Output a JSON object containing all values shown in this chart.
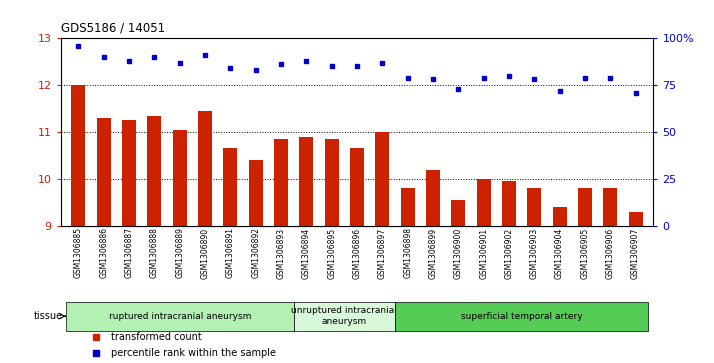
{
  "title": "GDS5186 / 14051",
  "samples": [
    "GSM1306885",
    "GSM1306886",
    "GSM1306887",
    "GSM1306888",
    "GSM1306889",
    "GSM1306890",
    "GSM1306891",
    "GSM1306892",
    "GSM1306893",
    "GSM1306894",
    "GSM1306895",
    "GSM1306896",
    "GSM1306897",
    "GSM1306898",
    "GSM1306899",
    "GSM1306900",
    "GSM1306901",
    "GSM1306902",
    "GSM1306903",
    "GSM1306904",
    "GSM1306905",
    "GSM1306906",
    "GSM1306907"
  ],
  "bar_values": [
    12.0,
    11.3,
    11.25,
    11.35,
    11.05,
    11.45,
    10.65,
    10.4,
    10.85,
    10.9,
    10.85,
    10.65,
    11.0,
    9.8,
    10.2,
    9.55,
    10.0,
    9.95,
    9.8,
    9.4,
    9.8,
    9.8,
    9.3
  ],
  "dot_values": [
    96,
    90,
    88,
    90,
    87,
    91,
    84,
    83,
    86,
    88,
    85,
    85,
    87,
    79,
    78,
    73,
    79,
    80,
    78,
    72,
    79,
    79,
    71
  ],
  "bar_color": "#cc2200",
  "dot_color": "#0000cc",
  "ylim_left": [
    9,
    13
  ],
  "ylim_right": [
    0,
    100
  ],
  "yticks_left": [
    9,
    10,
    11,
    12,
    13
  ],
  "yticks_right": [
    0,
    25,
    50,
    75,
    100
  ],
  "ytick_labels_right": [
    "0",
    "25",
    "50",
    "75",
    "100%"
  ],
  "grid_lines": [
    10,
    11,
    12
  ],
  "tissue_groups": [
    {
      "label": "ruptured intracranial aneurysm",
      "start": 0,
      "end": 9,
      "color": "#b3f0b3"
    },
    {
      "label": "unruptured intracranial\naneurysm",
      "start": 9,
      "end": 13,
      "color": "#d9f7d9"
    },
    {
      "label": "superficial temporal artery",
      "start": 13,
      "end": 23,
      "color": "#55cc55"
    }
  ],
  "legend_items": [
    {
      "label": "transformed count",
      "color": "#cc2200"
    },
    {
      "label": "percentile rank within the sample",
      "color": "#0000cc"
    }
  ],
  "tissue_label": "tissue",
  "xtick_bg": "#d0d0d0"
}
